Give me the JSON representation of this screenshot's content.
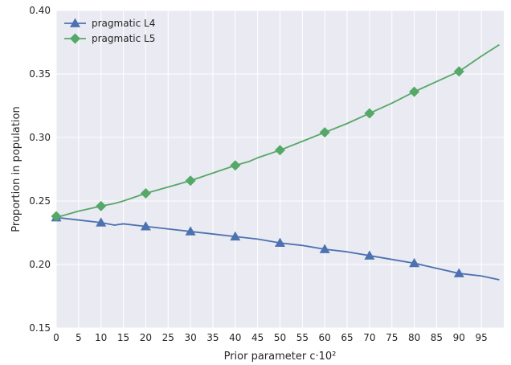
{
  "chart_data": {
    "type": "line",
    "xlabel": "Prior parameter c·10²",
    "ylabel": "Proportion in population",
    "xlim": [
      0,
      100
    ],
    "ylim": [
      0.15,
      0.4
    ],
    "xticks": [
      0,
      5,
      10,
      15,
      20,
      25,
      30,
      35,
      40,
      45,
      50,
      55,
      60,
      65,
      70,
      75,
      80,
      85,
      90,
      95
    ],
    "yticks": [
      0.15,
      0.2,
      0.25,
      0.3,
      0.35,
      0.4
    ],
    "ytick_labels": [
      "0.15",
      "0.20",
      "0.25",
      "0.30",
      "0.35",
      "0.40"
    ],
    "grid": true,
    "legend_position": "top-left",
    "series": [
      {
        "name": "pragmatic L4",
        "color": "#4c72b0",
        "marker": "triangle",
        "x": [
          0,
          5,
          10,
          13,
          15,
          20,
          25,
          30,
          35,
          40,
          45,
          50,
          55,
          60,
          65,
          70,
          75,
          80,
          85,
          90,
          95,
          99
        ],
        "y": [
          0.237,
          0.235,
          0.233,
          0.231,
          0.232,
          0.23,
          0.228,
          0.226,
          0.224,
          0.222,
          0.22,
          0.217,
          0.215,
          0.212,
          0.21,
          0.207,
          0.204,
          0.201,
          0.197,
          0.193,
          0.191,
          0.188
        ],
        "marker_x": [
          0,
          10,
          20,
          30,
          40,
          50,
          60,
          70,
          80,
          90
        ],
        "marker_y": [
          0.237,
          0.233,
          0.23,
          0.226,
          0.222,
          0.217,
          0.212,
          0.207,
          0.201,
          0.193
        ]
      },
      {
        "name": "pragmatic L5",
        "color": "#55a868",
        "marker": "diamond",
        "x": [
          0,
          5,
          10,
          13,
          15,
          20,
          25,
          30,
          35,
          40,
          43,
          45,
          50,
          55,
          60,
          65,
          70,
          75,
          80,
          85,
          90,
          95,
          99
        ],
        "y": [
          0.237,
          0.242,
          0.246,
          0.248,
          0.25,
          0.256,
          0.261,
          0.266,
          0.272,
          0.278,
          0.281,
          0.284,
          0.29,
          0.297,
          0.304,
          0.311,
          0.319,
          0.327,
          0.336,
          0.344,
          0.352,
          0.364,
          0.373
        ],
        "marker_x": [
          0,
          10,
          20,
          30,
          40,
          50,
          60,
          70,
          80,
          90
        ],
        "marker_y": [
          0.238,
          0.246,
          0.256,
          0.266,
          0.278,
          0.29,
          0.304,
          0.319,
          0.336,
          0.352
        ]
      }
    ]
  }
}
